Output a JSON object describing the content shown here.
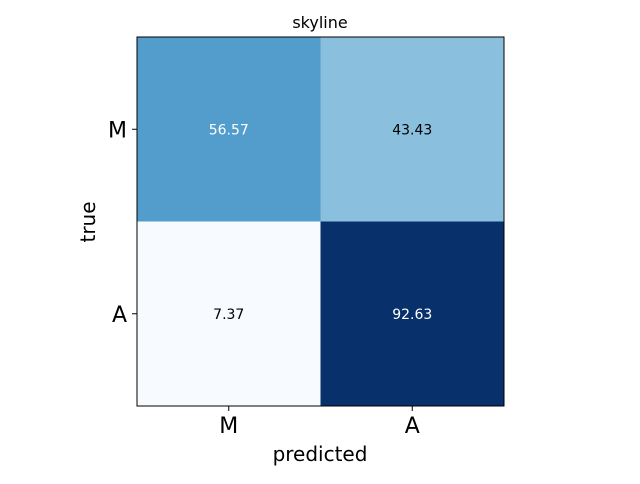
{
  "chart_data": {
    "type": "heatmap",
    "title": "skyline",
    "xlabel": "predicted",
    "ylabel": "true",
    "x_categories": [
      "M",
      "A"
    ],
    "y_categories": [
      "M",
      "A"
    ],
    "values": [
      [
        56.57,
        43.43
      ],
      [
        7.37,
        92.63
      ]
    ],
    "value_labels": [
      [
        "56.57",
        "43.43"
      ],
      [
        "7.37",
        "92.63"
      ]
    ],
    "colormap": "Blues",
    "vmin": 7.37,
    "vmax": 92.63,
    "grid": false,
    "legend": "none"
  }
}
